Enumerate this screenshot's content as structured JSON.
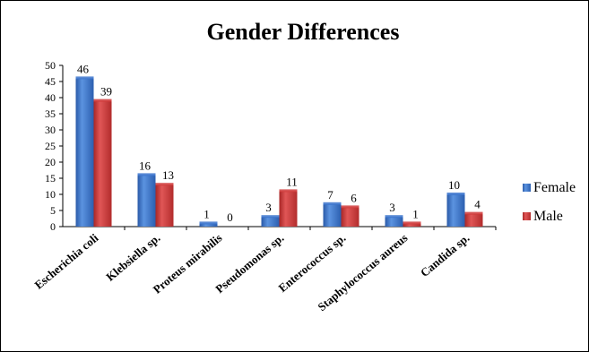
{
  "chart_data": {
    "type": "bar",
    "title": "Gender Differences",
    "categories": [
      "Escherichia coli",
      "Klebsiella sp.",
      "Proteus mirabilis",
      "Pseudomonas sp.",
      "Enterococcus sp.",
      "Staphylococcus aureus",
      "Candida sp."
    ],
    "series": [
      {
        "name": "Female",
        "values": [
          46,
          16,
          1,
          3,
          7,
          3,
          10
        ],
        "color": "#3a73cc"
      },
      {
        "name": "Male",
        "values": [
          39,
          13,
          0,
          11,
          6,
          1,
          4
        ],
        "color": "#d03a3a"
      }
    ],
    "ylim": [
      0,
      50
    ],
    "yticks": [
      0,
      5,
      10,
      15,
      20,
      25,
      30,
      35,
      40,
      45,
      50
    ],
    "xlabel": "",
    "ylabel": "",
    "grid": false,
    "legend_position": "right"
  }
}
